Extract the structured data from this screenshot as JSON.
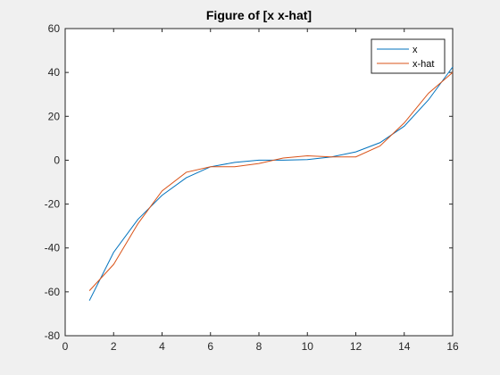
{
  "chart_data": {
    "type": "line",
    "title": "Figure of [x x-hat]",
    "xlabel": "",
    "ylabel": "",
    "xlim": [
      0,
      16
    ],
    "ylim": [
      -80,
      60
    ],
    "xticks": [
      0,
      2,
      4,
      6,
      8,
      10,
      12,
      14,
      16
    ],
    "yticks": [
      -80,
      -60,
      -40,
      -20,
      0,
      20,
      40,
      60
    ],
    "grid": false,
    "legend_position": "top-right",
    "x": [
      1,
      2,
      3,
      4,
      5,
      6,
      7,
      8,
      9,
      10,
      11,
      12,
      13,
      14,
      15,
      16
    ],
    "series": [
      {
        "name": "x",
        "color": "#0072bd",
        "values": [
          -64,
          -42,
          -27,
          -16,
          -8,
          -3,
          -1,
          0,
          0,
          0.3,
          1.5,
          3.8,
          8,
          15.5,
          27.5,
          42.5
        ]
      },
      {
        "name": "x-hat",
        "color": "#d95319",
        "values": [
          -59.5,
          -47.5,
          -29,
          -14,
          -5.5,
          -3,
          -3,
          -1.5,
          1,
          2,
          1.5,
          1.5,
          6.5,
          17,
          30.5,
          40
        ]
      }
    ]
  }
}
